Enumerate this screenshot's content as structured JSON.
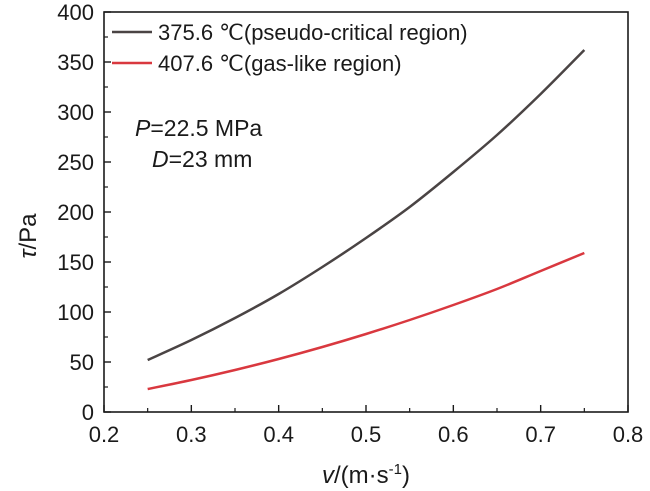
{
  "chart_data": {
    "type": "line",
    "xlabel": {
      "var": "v",
      "unit_prefix": "/(m·s",
      "unit_exp": "-1",
      "unit_suffix": ")"
    },
    "ylabel": {
      "var": "τ",
      "unit": "/Pa"
    },
    "xlim": [
      0.2,
      0.8
    ],
    "ylim": [
      0,
      400
    ],
    "xticks": [
      0.2,
      0.3,
      0.4,
      0.5,
      0.6,
      0.7,
      0.8
    ],
    "yticks": [
      0,
      50,
      100,
      150,
      200,
      250,
      300,
      350,
      400
    ],
    "xtick_labels": [
      "0.2",
      "0.3",
      "0.4",
      "0.5",
      "0.6",
      "0.7",
      "0.8"
    ],
    "ytick_labels": [
      "0",
      "50",
      "100",
      "150",
      "200",
      "250",
      "300",
      "350",
      "400"
    ],
    "grid": false,
    "legend_position": "top-left",
    "annotations": [
      {
        "var": "P",
        "text": "=22.5 MPa"
      },
      {
        "var": "D",
        "text": "=23 mm"
      }
    ],
    "series": [
      {
        "name": "375.6 ℃(pseudo-critical region)",
        "color": "#4a4444",
        "x": [
          0.25,
          0.3,
          0.35,
          0.4,
          0.45,
          0.5,
          0.55,
          0.6,
          0.65,
          0.7,
          0.75
        ],
        "y": [
          52,
          72,
          94,
          118,
          145,
          174,
          205,
          240,
          277,
          318,
          362
        ]
      },
      {
        "name": "407.6 ℃(gas-like region)",
        "color": "#d9383f",
        "x": [
          0.25,
          0.3,
          0.35,
          0.4,
          0.45,
          0.5,
          0.55,
          0.6,
          0.65,
          0.7,
          0.75
        ],
        "y": [
          23,
          32,
          42,
          53,
          65,
          78,
          92,
          107,
          123,
          141,
          159
        ]
      }
    ]
  }
}
